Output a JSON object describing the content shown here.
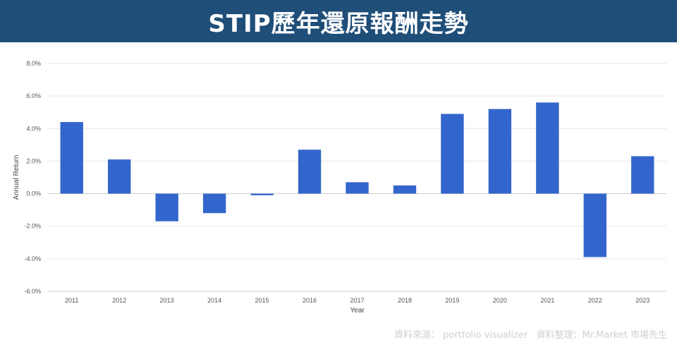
{
  "header": {
    "title": "STIP歷年還原報酬走勢"
  },
  "footer": {
    "source": "資料來源： portfolio visualizer   資料整理：Mr.Market 市場先生"
  },
  "colors": {
    "bar": "#3366cc",
    "banner": "#1f4e79",
    "grid": "#e6e6e6"
  },
  "chart_data": {
    "type": "bar",
    "categories": [
      "2011",
      "2012",
      "2013",
      "2014",
      "2015",
      "2016",
      "2017",
      "2018",
      "2019",
      "2020",
      "2021",
      "2022",
      "2023"
    ],
    "values": [
      4.4,
      2.1,
      -1.7,
      -1.2,
      -0.1,
      2.7,
      0.7,
      0.5,
      4.9,
      5.2,
      5.6,
      -3.9,
      2.3
    ],
    "title": "",
    "xlabel": "Year",
    "ylabel": "Annual Return",
    "ylim": [
      -6,
      8
    ],
    "yticks": [
      "8.0%",
      "6.0%",
      "4.0%",
      "2.0%",
      "0.0%",
      "-2.0%",
      "-4.0%",
      "-6.0%"
    ],
    "ytick_values": [
      8,
      6,
      4,
      2,
      0,
      -2,
      -4,
      -6
    ],
    "grid": true
  }
}
